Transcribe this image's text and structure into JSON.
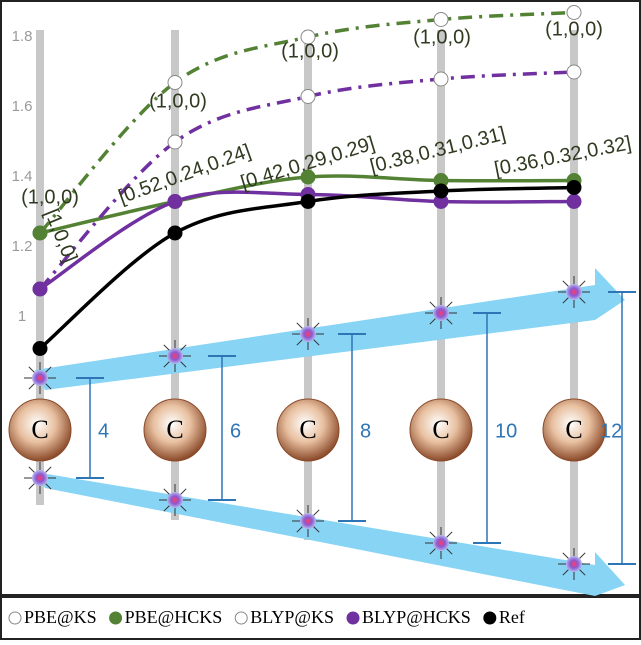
{
  "chart_data": {
    "type": "line",
    "categories": [
      null,
      null,
      null,
      null,
      null
    ],
    "ylim": [
      0.2,
      1.9
    ],
    "yticks": [
      1.0,
      1.2,
      1.4,
      1.6,
      1.8
    ],
    "series": [
      {
        "name": "PBE@KS",
        "color": "#548235",
        "linestyle": "dashdot",
        "marker": "open",
        "values": [
          1.24,
          1.67,
          1.8,
          1.85,
          1.87
        ]
      },
      {
        "name": "PBE@HCKS",
        "color": "#548235",
        "linestyle": "solid",
        "marker": "filled",
        "values": [
          1.24,
          1.33,
          1.4,
          1.39,
          1.39
        ]
      },
      {
        "name": "BLYP@KS",
        "color": "#7030a0",
        "linestyle": "dashdot",
        "marker": "open",
        "values": [
          1.08,
          1.5,
          1.63,
          1.68,
          1.7
        ]
      },
      {
        "name": "BLYP@HCKS",
        "color": "#7030a0",
        "linestyle": "solid",
        "marker": "filled",
        "values": [
          1.08,
          1.33,
          1.35,
          1.33,
          1.33
        ]
      },
      {
        "name": "Ref",
        "color": "#000000",
        "linestyle": "solid",
        "marker": "filled",
        "values": [
          0.91,
          1.24,
          1.33,
          1.36,
          1.37
        ]
      }
    ],
    "annotations": [
      "(1,0,0)",
      "(1,0,0)",
      "(1,0,0)",
      "(1,0,0)",
      "(1,0,0)",
      "[1,0,0]",
      "[0.52,0.24,0.24]",
      "[0.42,0.29,0.29]",
      "[0.38,0.31,0.31]",
      "[0.36,0.32,0.32]"
    ],
    "atom_labels": [
      "C",
      "C",
      "C",
      "C",
      "C"
    ],
    "distances": [
      4,
      6,
      8,
      10,
      12
    ]
  }
}
